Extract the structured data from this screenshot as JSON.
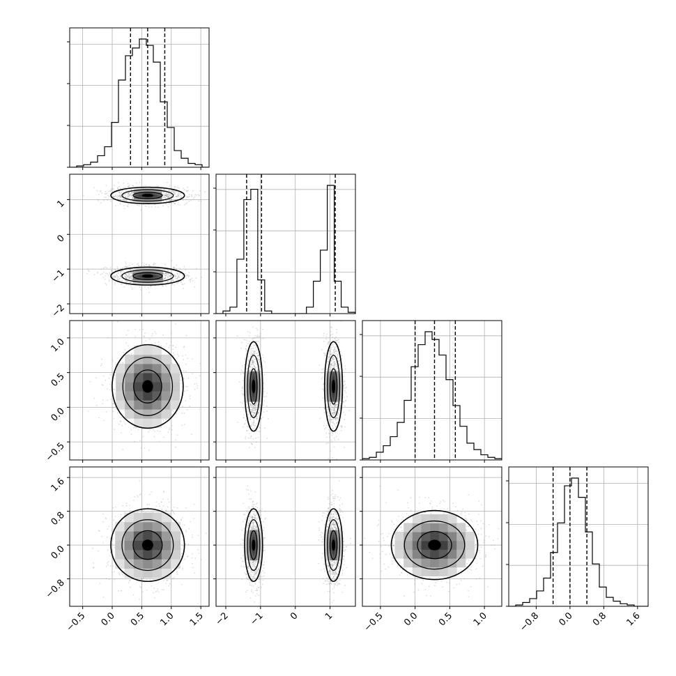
{
  "chart_data": {
    "type": "corner",
    "title": "",
    "grid": true,
    "colors": {
      "line": "#000000",
      "scatter": "#9a9a9a",
      "grid": "#b0b0b0"
    },
    "parameters": [
      {
        "index": 0,
        "label": "",
        "range": [
          -0.72,
          1.64
        ],
        "ticks": [
          -0.5,
          0.0,
          0.5,
          1.0,
          1.5
        ],
        "tick_labels": [
          "−0.5",
          "0.0",
          "0.5",
          "1.0",
          "1.5"
        ],
        "quantiles": [
          0.31,
          0.6,
          0.89
        ],
        "hist_ymax": 1.0
      },
      {
        "index": 1,
        "label": "",
        "range": [
          -2.28,
          1.73
        ],
        "ticks": [
          -2,
          -1,
          0,
          1
        ],
        "tick_labels": [
          "−2",
          "−1",
          "0",
          "1"
        ],
        "quantiles": [
          -1.4,
          -0.97,
          1.15
        ],
        "hist_ymax": 1.0
      },
      {
        "index": 2,
        "label": "",
        "range": [
          -0.76,
          1.25
        ],
        "ticks": [
          -0.5,
          0.0,
          0.5,
          1.0
        ],
        "tick_labels": [
          "−0.5",
          "0.0",
          "0.5",
          "1.0"
        ],
        "quantiles": [
          0.0,
          0.28,
          0.58
        ],
        "hist_ymax": 1.0
      },
      {
        "index": 3,
        "label": "",
        "range": [
          -1.45,
          1.85
        ],
        "ticks": [
          -0.8,
          0.0,
          0.8,
          1.6
        ],
        "tick_labels": [
          "−0.8",
          "0.0",
          "0.8",
          "1.6"
        ],
        "quantiles": [
          -0.4,
          0.0,
          0.4
        ],
        "hist_ymax": 1.0
      }
    ],
    "histograms": [
      {
        "param": 0,
        "bin_start": -0.72,
        "bin_width": 0.118,
        "counts": [
          0.0,
          0.01,
          0.02,
          0.04,
          0.09,
          0.16,
          0.35,
          0.68,
          0.87,
          0.93,
          1.0,
          0.95,
          0.82,
          0.51,
          0.31,
          0.13,
          0.07,
          0.03,
          0.02,
          0.0
        ]
      },
      {
        "param": 1,
        "bin_start": -2.28,
        "bin_width": 0.2,
        "counts": [
          0.0,
          0.02,
          0.05,
          0.42,
          0.88,
          0.96,
          0.26,
          0.02,
          0.0,
          0.0,
          0.0,
          0.0,
          0.0,
          0.05,
          0.25,
          0.49,
          0.99,
          0.25,
          0.05,
          0.01
        ]
      },
      {
        "param": 2,
        "bin_start": -0.76,
        "bin_width": 0.1005,
        "counts": [
          0.01,
          0.02,
          0.06,
          0.11,
          0.18,
          0.29,
          0.46,
          0.72,
          0.89,
          0.99,
          0.93,
          0.81,
          0.62,
          0.42,
          0.26,
          0.13,
          0.08,
          0.04,
          0.02,
          0.01
        ]
      },
      {
        "param": 3,
        "bin_start": -1.45,
        "bin_width": 0.165,
        "counts": [
          0.0,
          0.01,
          0.03,
          0.06,
          0.12,
          0.22,
          0.42,
          0.65,
          0.94,
          1.0,
          0.85,
          0.58,
          0.33,
          0.15,
          0.07,
          0.04,
          0.02,
          0.01,
          0.0,
          0.0
        ]
      }
    ],
    "joint": [
      {
        "x": 0,
        "y": 1,
        "modes": [
          {
            "cx": 0.6,
            "cy": 1.12,
            "sx": 0.29,
            "sy": 0.11,
            "rho": -0.05
          },
          {
            "cx": 0.6,
            "cy": -1.2,
            "sx": 0.29,
            "sy": 0.12,
            "rho": -0.08
          }
        ]
      },
      {
        "x": 0,
        "y": 2,
        "modes": [
          {
            "cx": 0.6,
            "cy": 0.3,
            "sx": 0.28,
            "sy": 0.28,
            "rho": 0.05
          }
        ]
      },
      {
        "x": 1,
        "y": 2,
        "modes": [
          {
            "cx": -1.2,
            "cy": 0.3,
            "sx": 0.12,
            "sy": 0.3,
            "rho": 0.0
          },
          {
            "cx": 1.1,
            "cy": 0.3,
            "sx": 0.12,
            "sy": 0.3,
            "rho": 0.0
          }
        ]
      },
      {
        "x": 0,
        "y": 3,
        "modes": [
          {
            "cx": 0.6,
            "cy": 0.0,
            "sx": 0.29,
            "sy": 0.4,
            "rho": 0.0
          }
        ]
      },
      {
        "x": 1,
        "y": 3,
        "modes": [
          {
            "cx": -1.2,
            "cy": 0.0,
            "sx": 0.12,
            "sy": 0.4,
            "rho": 0.0
          },
          {
            "cx": 1.1,
            "cy": 0.0,
            "sx": 0.12,
            "sy": 0.4,
            "rho": 0.0
          }
        ]
      },
      {
        "x": 2,
        "y": 3,
        "modes": [
          {
            "cx": 0.28,
            "cy": 0.0,
            "sx": 0.29,
            "sy": 0.38,
            "rho": 0.0
          }
        ]
      }
    ]
  }
}
